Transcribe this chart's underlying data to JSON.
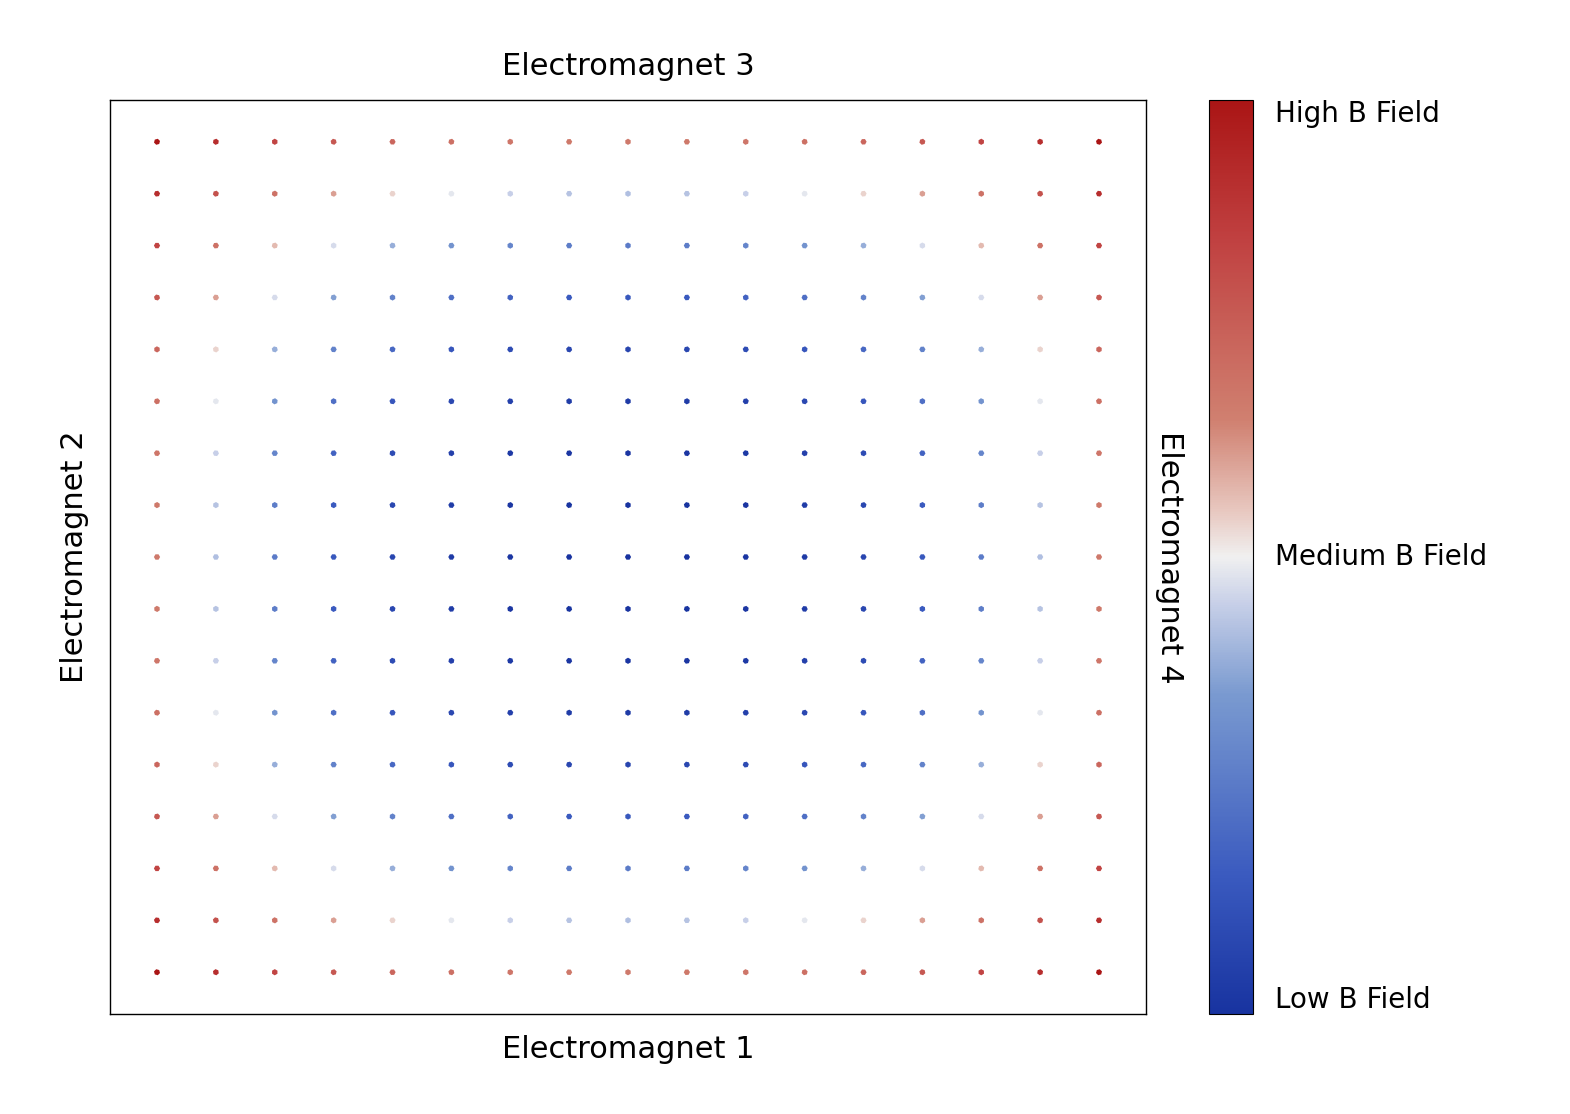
{
  "title_top": "Electromagnet 3",
  "title_bottom": "Electromagnet 1",
  "title_left": "Electromagnet 2",
  "title_right": "Electromagnet 4",
  "colorbar_label_high": "High B Field",
  "colorbar_label_mid": "Medium B Field",
  "colorbar_label_low": "Low B Field",
  "grid_n": 17,
  "background_color": "#ffffff",
  "title_fontsize": 22,
  "axis_label_fontsize": 22,
  "colorbar_label_fontsize": 20,
  "figsize": [
    15.7,
    11.14
  ],
  "dpi": 100,
  "cmap_colors": [
    [
      0.0,
      "#1833a0"
    ],
    [
      0.15,
      "#3a5abf"
    ],
    [
      0.35,
      "#7a9ad0"
    ],
    [
      0.45,
      "#c8d0e8"
    ],
    [
      0.5,
      "#f0f0f0"
    ],
    [
      0.55,
      "#e8c8c0"
    ],
    [
      0.65,
      "#d08070"
    ],
    [
      0.85,
      "#c04040"
    ],
    [
      1.0,
      "#aa1515"
    ]
  ]
}
